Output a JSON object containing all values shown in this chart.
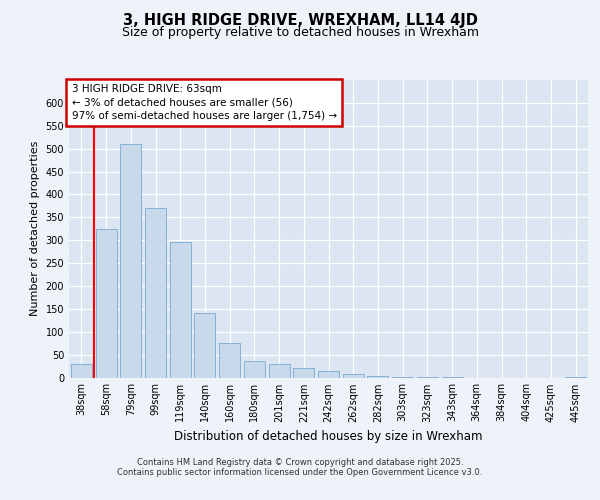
{
  "title1": "3, HIGH RIDGE DRIVE, WREXHAM, LL14 4JD",
  "title2": "Size of property relative to detached houses in Wrexham",
  "xlabel": "Distribution of detached houses by size in Wrexham",
  "ylabel": "Number of detached properties",
  "annotation_line1": "3 HIGH RIDGE DRIVE: 63sqm",
  "annotation_line2": "← 3% of detached houses are smaller (56)",
  "annotation_line3": "97% of semi-detached houses are larger (1,754) →",
  "bar_color": "#c9d9ec",
  "bar_edge_color": "#7aaad0",
  "red_line_x": 0.5,
  "categories": [
    "38sqm",
    "58sqm",
    "79sqm",
    "99sqm",
    "119sqm",
    "140sqm",
    "160sqm",
    "180sqm",
    "201sqm",
    "221sqm",
    "242sqm",
    "262sqm",
    "282sqm",
    "303sqm",
    "323sqm",
    "343sqm",
    "364sqm",
    "384sqm",
    "404sqm",
    "425sqm",
    "445sqm"
  ],
  "values": [
    30,
    325,
    510,
    370,
    295,
    140,
    75,
    35,
    30,
    20,
    15,
    8,
    4,
    2,
    1,
    1,
    0,
    0,
    0,
    0,
    1
  ],
  "ylim": [
    0,
    650
  ],
  "yticks": [
    0,
    50,
    100,
    150,
    200,
    250,
    300,
    350,
    400,
    450,
    500,
    550,
    600
  ],
  "background_color": "#eef2f9",
  "plot_bg_color": "#dce6f2",
  "grid_color": "#ffffff",
  "footer_line1": "Contains HM Land Registry data © Crown copyright and database right 2025.",
  "footer_line2": "Contains public sector information licensed under the Open Government Licence v3.0.",
  "annotation_box_color": "#ffffff",
  "annotation_border_color": "#cc0000",
  "title1_fontsize": 10.5,
  "title2_fontsize": 9,
  "ylabel_fontsize": 8,
  "xlabel_fontsize": 8.5,
  "tick_fontsize": 7,
  "annotation_fontsize": 7.5,
  "footer_fontsize": 6.0
}
